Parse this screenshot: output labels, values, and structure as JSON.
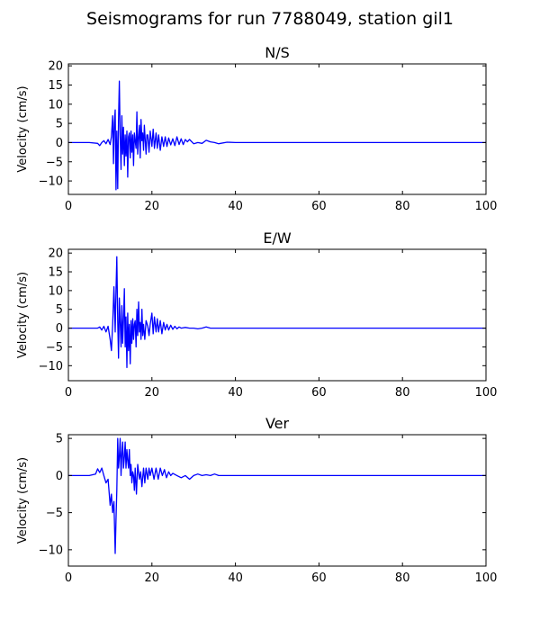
{
  "figure": {
    "title": "Seismograms for run 7788049, station gil1"
  },
  "style": {
    "line_color": "#0000ff",
    "axes_color": "#000000",
    "background": "#ffffff"
  },
  "chart_data": [
    {
      "type": "line",
      "title": "N/S",
      "xlabel": "",
      "ylabel": "Velocity (cm/s)",
      "xlim": [
        0,
        100
      ],
      "ylim": [
        -13.5,
        20.5
      ],
      "xticks": [
        0,
        20,
        40,
        60,
        80,
        100
      ],
      "yticks": [
        -10,
        -5,
        0,
        5,
        10,
        15,
        20
      ],
      "grid": false,
      "series": [
        {
          "x": [
            0,
            5,
            7,
            7.5,
            8,
            8.5,
            9,
            9.5,
            10,
            10.3,
            10.6,
            10.8,
            11,
            11.2,
            11.4,
            11.6,
            11.8,
            12,
            12.2,
            12.4,
            12.6,
            12.8,
            13,
            13.2,
            13.4,
            13.6,
            13.8,
            14,
            14.2,
            14.4,
            14.6,
            14.8,
            15,
            15.2,
            15.4,
            15.6,
            15.8,
            16,
            16.2,
            16.4,
            16.6,
            16.8,
            17,
            17.2,
            17.4,
            17.6,
            17.8,
            18,
            18.2,
            18.4,
            18.6,
            18.8,
            19,
            19.3,
            19.6,
            20,
            20.3,
            20.6,
            21,
            21.3,
            21.6,
            22,
            22.4,
            22.8,
            23.2,
            23.6,
            24,
            24.5,
            25,
            25.5,
            26,
            26.5,
            27,
            27.5,
            28,
            28.5,
            29,
            30,
            31,
            32,
            33,
            34,
            35,
            36,
            38,
            40,
            50,
            60,
            70,
            80,
            90,
            100
          ],
          "y": [
            0,
            0,
            -0.2,
            -0.8,
            0,
            0.5,
            -0.3,
            0.8,
            -0.5,
            1.5,
            7,
            -5.5,
            5,
            8.5,
            -12.3,
            3,
            -12,
            6,
            16,
            2,
            -7,
            7,
            -3,
            4,
            -6,
            2,
            -3.5,
            3,
            -9,
            1.5,
            2.5,
            -4,
            3,
            -2.5,
            2,
            -6,
            2.5,
            0.5,
            -1.5,
            8,
            -3,
            1.5,
            4.5,
            -4,
            6,
            0.5,
            2.5,
            -2,
            4.5,
            0.5,
            -3,
            2,
            2,
            -2.5,
            3,
            -1,
            3.5,
            -1.5,
            2.5,
            -1.5,
            2,
            -2,
            1.5,
            -1,
            1.5,
            -1,
            1.2,
            -0.6,
            1,
            -0.8,
            1.5,
            -0.5,
            1,
            -0.5,
            0.8,
            0.2,
            0.8,
            -0.3,
            0,
            -0.2,
            0.6,
            0.2,
            0,
            -0.3,
            0.1,
            0,
            0,
            0,
            0,
            0,
            0,
            0
          ]
        }
      ]
    },
    {
      "type": "line",
      "title": "E/W",
      "xlabel": "",
      "ylabel": "Velocity (cm/s)",
      "xlim": [
        0,
        100
      ],
      "ylim": [
        -14,
        21
      ],
      "xticks": [
        0,
        20,
        40,
        60,
        80,
        100
      ],
      "yticks": [
        -10,
        -5,
        0,
        5,
        10,
        15,
        20
      ],
      "grid": false,
      "series": [
        {
          "x": [
            0,
            5,
            7,
            7.5,
            8,
            8.5,
            9,
            9.5,
            10,
            10.3,
            10.6,
            10.9,
            11.2,
            11.4,
            11.6,
            11.8,
            12,
            12.2,
            12.4,
            12.6,
            12.8,
            13,
            13.2,
            13.4,
            13.6,
            13.8,
            14,
            14.2,
            14.4,
            14.6,
            14.8,
            15,
            15.2,
            15.4,
            15.6,
            15.8,
            16,
            16.2,
            16.4,
            16.6,
            16.8,
            17,
            17.2,
            17.4,
            17.6,
            17.8,
            18,
            18.3,
            18.6,
            19,
            19.3,
            19.6,
            20,
            20.3,
            20.6,
            21,
            21.3,
            21.6,
            22,
            22.4,
            22.8,
            23.2,
            23.6,
            24,
            24.5,
            25,
            25.5,
            26,
            26.5,
            27,
            28,
            29,
            30,
            31,
            32,
            33,
            34,
            36,
            38,
            40,
            50,
            60,
            70,
            80,
            90,
            100
          ],
          "y": [
            0,
            0,
            0,
            0.3,
            -0.5,
            0.5,
            -1,
            0.5,
            -3,
            -6,
            1,
            11,
            -1,
            10,
            19,
            2,
            -8,
            8,
            2,
            -5,
            6,
            -4,
            2,
            10.5,
            -5,
            3,
            -10.5,
            4,
            -6,
            1,
            -9.5,
            2,
            -4,
            2.5,
            -3,
            1,
            2,
            -5,
            5,
            -2,
            7,
            -1,
            1.5,
            -3,
            5,
            -2,
            1,
            -3,
            2,
            0.5,
            -2,
            1,
            4,
            -1.5,
            3,
            -1,
            2.5,
            -1,
            2,
            -1.5,
            1.5,
            -0.5,
            1,
            -0.5,
            0.8,
            -0.3,
            0.5,
            -0.2,
            0.3,
            0,
            0.2,
            0,
            0,
            -0.2,
            0,
            0.3,
            0,
            0,
            0,
            0,
            0,
            0,
            0,
            0,
            0,
            0
          ]
        }
      ]
    },
    {
      "type": "line",
      "title": "Ver",
      "xlabel": "",
      "ylabel": "Velocity (cm/s)",
      "xlim": [
        0,
        100
      ],
      "ylim": [
        -12.2,
        5.5
      ],
      "xticks": [
        0,
        20,
        40,
        60,
        80,
        100
      ],
      "yticks": [
        -10,
        -5,
        0,
        5
      ],
      "grid": false,
      "series": [
        {
          "x": [
            0,
            5,
            6.5,
            7,
            7.5,
            8,
            8.5,
            9,
            9.5,
            10,
            10.3,
            10.6,
            10.9,
            11.2,
            11.4,
            11.6,
            11.8,
            12,
            12.2,
            12.4,
            12.6,
            12.8,
            13,
            13.2,
            13.4,
            13.6,
            13.8,
            14,
            14.2,
            14.4,
            14.6,
            14.8,
            15,
            15.2,
            15.4,
            15.6,
            15.8,
            16,
            16.3,
            16.6,
            17,
            17.3,
            17.6,
            18,
            18.3,
            18.6,
            19,
            19.3,
            19.6,
            20,
            20.5,
            21,
            21.5,
            22,
            22.5,
            23,
            23.5,
            24,
            24.5,
            25,
            26,
            27,
            28,
            29,
            30,
            31,
            32,
            33,
            34,
            35,
            36,
            38,
            40,
            50,
            60,
            70,
            80,
            90,
            100
          ],
          "y": [
            0,
            0,
            0.2,
            0.9,
            0.4,
            1,
            0,
            -1,
            -0.5,
            -4,
            -2.5,
            -5,
            -3.5,
            -10.5,
            -6,
            -2,
            5,
            1,
            2.5,
            5,
            0,
            3,
            4.5,
            1,
            2.5,
            4.5,
            1,
            3.5,
            2,
            1,
            3.5,
            0,
            1.5,
            -1,
            0.5,
            0,
            -2,
            1,
            -2.5,
            1.5,
            -0.5,
            0.5,
            -1.5,
            1,
            -1,
            1,
            -0.5,
            1,
            0,
            1,
            -0.5,
            1,
            -0.5,
            1,
            0,
            0.8,
            -0.3,
            0.5,
            0,
            0.3,
            0,
            -0.3,
            0,
            -0.5,
            0,
            0.2,
            0,
            0.1,
            0,
            0.2,
            0,
            0,
            0,
            0,
            0,
            0,
            0,
            0,
            0
          ]
        }
      ]
    }
  ]
}
